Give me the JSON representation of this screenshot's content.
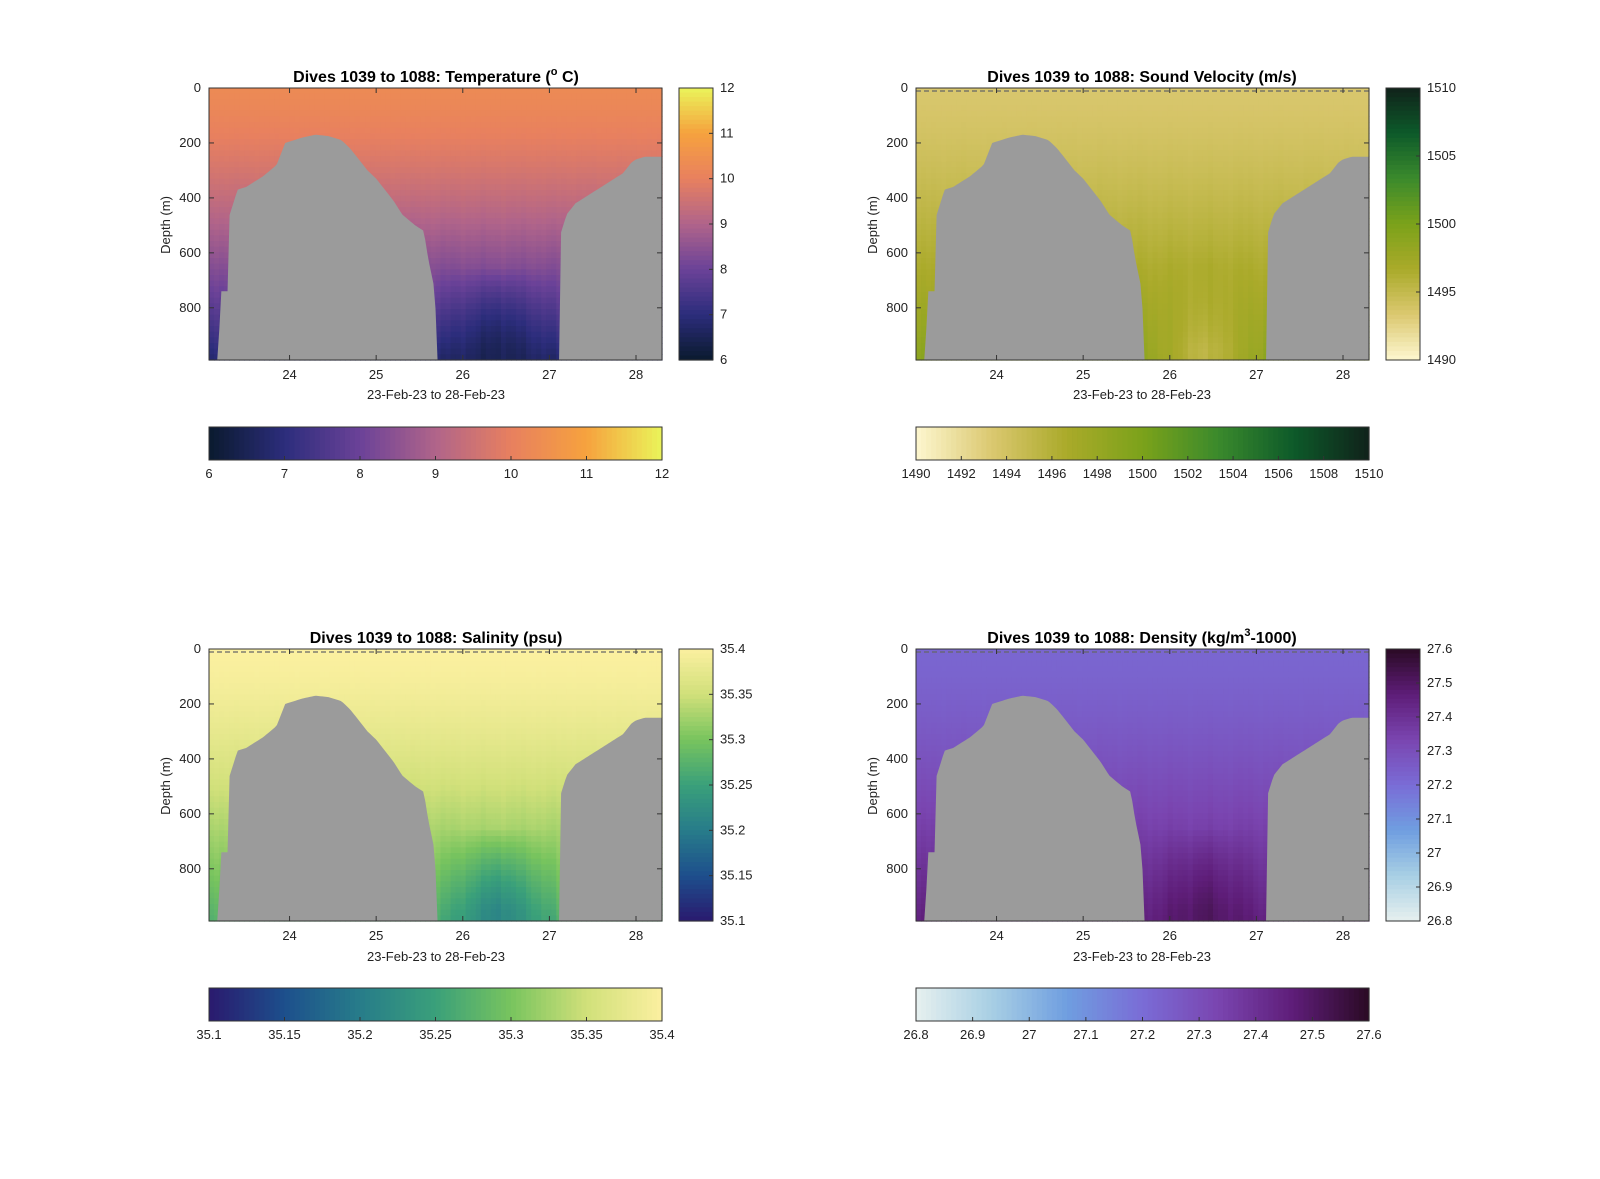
{
  "figure": {
    "date_range_label": "23-Feb-23 to 28-Feb-23",
    "ylabel": "Depth (m)",
    "mask_color": "#9b9b9b"
  },
  "chart_data": [
    {
      "type": "heatmap",
      "variable": "temperature",
      "title_prefix": "Dives 1039 to 1088: Temperature (",
      "title_sup": "o",
      "title_suffix": " C)",
      "xlabel": "23-Feb-23 to 28-Feb-23",
      "ylabel": "Depth (m)",
      "xlim": [
        23.07,
        28.3
      ],
      "ylim": [
        0,
        990
      ],
      "y_reversed": true,
      "xticks": [
        24,
        25,
        26,
        27,
        28
      ],
      "yticks": [
        0,
        200,
        400,
        600,
        800
      ],
      "clim": [
        6,
        12
      ],
      "cticks_vertical": [
        12,
        11,
        10,
        9,
        8,
        7,
        6
      ],
      "cticks_horizontal": [
        6,
        7,
        8,
        9,
        10,
        11,
        12
      ],
      "colormap": [
        "#0a1a2e",
        "#2c2d7c",
        "#6b4298",
        "#b0648a",
        "#e8805f",
        "#f6a23e",
        "#eaf45a"
      ],
      "surface_value": 10.3,
      "deep_value": 6.8,
      "trench_min_value": 6.4,
      "dashed_top": false
    },
    {
      "type": "heatmap",
      "variable": "sound_velocity",
      "title_prefix": "Dives 1039 to 1088: Sound Velocity (m/s)",
      "title_sup": "",
      "title_suffix": "",
      "xlabel": "23-Feb-23 to 28-Feb-23",
      "ylabel": "Depth (m)",
      "xlim": [
        23.07,
        28.3
      ],
      "ylim": [
        0,
        990
      ],
      "y_reversed": true,
      "xticks": [
        24,
        25,
        26,
        27,
        28
      ],
      "yticks": [
        0,
        200,
        400,
        600,
        800
      ],
      "clim": [
        1490,
        1510
      ],
      "cticks_vertical": [
        1510,
        1505,
        1500,
        1495,
        1490
      ],
      "cticks_horizontal": [
        1490,
        1492,
        1494,
        1496,
        1498,
        1500,
        1502,
        1504,
        1506,
        1508,
        1510
      ],
      "colormap": [
        "#fdf7cf",
        "#dbc870",
        "#aaaa2a",
        "#7ba21a",
        "#3b8a2c",
        "#0d5a2a",
        "#10221a"
      ],
      "surface_value": 1493.5,
      "deep_value": 1498.8,
      "trench_min_value": 1494.5,
      "dashed_top": true
    },
    {
      "type": "heatmap",
      "variable": "salinity",
      "title_prefix": "Dives 1039 to 1088: Salinity (psu)",
      "title_sup": "",
      "title_suffix": "",
      "xlabel": "23-Feb-23 to 28-Feb-23",
      "ylabel": "Depth (m)",
      "xlim": [
        23.07,
        28.3
      ],
      "ylim": [
        0,
        990
      ],
      "y_reversed": true,
      "xticks": [
        24,
        25,
        26,
        27,
        28
      ],
      "yticks": [
        0,
        200,
        400,
        600,
        800
      ],
      "clim": [
        35.1,
        35.4
      ],
      "cticks_vertical": [
        35.4,
        35.35,
        35.3,
        35.25,
        35.2,
        35.15,
        35.1
      ],
      "cticks_horizontal": [
        35.1,
        35.15,
        35.2,
        35.25,
        35.3,
        35.35,
        35.4
      ],
      "colormap": [
        "#2a1a6e",
        "#1d4f8c",
        "#277c8a",
        "#3aa07a",
        "#78c45e",
        "#d1e07a",
        "#fbf0a0"
      ],
      "surface_value": 35.4,
      "deep_value": 35.27,
      "trench_min_value": 35.2,
      "dashed_top": true
    },
    {
      "type": "heatmap",
      "variable": "density",
      "title_prefix": "Dives 1039 to 1088: Density (kg/m",
      "title_sup": "3",
      "title_suffix": "-1000)",
      "xlabel": "23-Feb-23 to 28-Feb-23",
      "ylabel": "Depth (m)",
      "xlim": [
        23.07,
        28.3
      ],
      "ylim": [
        0,
        990
      ],
      "y_reversed": true,
      "xticks": [
        24,
        25,
        26,
        27,
        28
      ],
      "yticks": [
        0,
        200,
        400,
        600,
        800
      ],
      "clim": [
        26.8,
        27.6
      ],
      "cticks_vertical": [
        27.6,
        27.5,
        27.4,
        27.3,
        27.2,
        27.1,
        27,
        26.9,
        26.8
      ],
      "cticks_horizontal": [
        26.8,
        26.9,
        27,
        27.1,
        27.2,
        27.3,
        27.4,
        27.5,
        27.6
      ],
      "colormap": [
        "#e6f0ef",
        "#a8cfe4",
        "#6f9ee0",
        "#7a6cd6",
        "#7a45b0",
        "#5e1d78",
        "#2a0a24"
      ],
      "surface_value": 27.22,
      "deep_value": 27.45,
      "trench_min_value": 27.52,
      "dashed_top": true
    }
  ],
  "bathymetry": {
    "x": [
      23.07,
      23.18,
      23.2,
      23.29,
      23.3,
      23.4,
      23.5,
      23.6,
      23.7,
      23.85,
      23.95,
      24.05,
      24.15,
      24.3,
      24.45,
      24.6,
      24.7,
      24.8,
      24.9,
      25.0,
      25.1,
      25.2,
      25.3,
      25.45,
      25.55,
      25.6,
      25.68,
      25.7,
      27.12,
      27.13,
      27.2,
      27.3,
      27.4,
      27.55,
      27.7,
      27.85,
      27.95,
      28.0,
      28.1,
      28.3
    ],
    "depth": [
      990,
      990,
      740,
      740,
      470,
      370,
      360,
      340,
      320,
      280,
      200,
      190,
      180,
      170,
      175,
      190,
      220,
      260,
      300,
      330,
      370,
      410,
      460,
      500,
      520,
      620,
      740,
      990,
      990,
      530,
      460,
      420,
      400,
      370,
      340,
      310,
      270,
      260,
      250,
      250
    ]
  }
}
